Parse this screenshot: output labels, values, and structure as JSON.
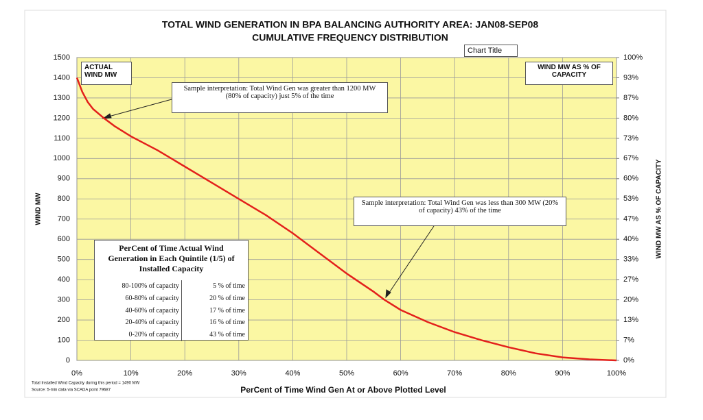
{
  "chart_data": {
    "type": "line",
    "title": "TOTAL WIND GENERATION IN BPA BALANCING AUTHORITY AREA: JAN08-SEP08",
    "subtitle": "CUMULATIVE FREQUENCY DISTRIBUTION",
    "tooltip": "Chart Title",
    "x_label": "PerCent of Time Wind Gen At or Above Plotted Level",
    "y_label": "WIND MW",
    "y2_label": "WIND MW AS % OF CAPACITY",
    "left_box": "ACTUAL WIND MW",
    "right_box": "WIND MW AS % OF CAPACITY",
    "color": "#e3201b",
    "grid": true,
    "x": [
      0,
      1,
      2,
      3,
      5,
      7,
      10,
      15,
      20,
      25,
      30,
      35,
      40,
      45,
      50,
      55,
      57,
      60,
      65,
      70,
      75,
      80,
      85,
      90,
      95,
      100
    ],
    "values": [
      1400,
      1330,
      1280,
      1245,
      1200,
      1160,
      1110,
      1040,
      960,
      880,
      800,
      720,
      630,
      530,
      430,
      340,
      300,
      250,
      190,
      140,
      100,
      65,
      35,
      15,
      5,
      0
    ],
    "xlim": [
      0,
      100
    ],
    "xticks": [
      {
        "value": 0,
        "label": "0%"
      },
      {
        "value": 10,
        "label": "10%"
      },
      {
        "value": 20,
        "label": "20%"
      },
      {
        "value": 30,
        "label": "30%"
      },
      {
        "value": 40,
        "label": "40%"
      },
      {
        "value": 50,
        "label": "50%"
      },
      {
        "value": 60,
        "label": "60%"
      },
      {
        "value": 70,
        "label": "70%"
      },
      {
        "value": 80,
        "label": "80%"
      },
      {
        "value": 90,
        "label": "90%"
      },
      {
        "value": 100,
        "label": "100%"
      }
    ],
    "ylim": [
      0,
      1500
    ],
    "yticks": [
      0,
      100,
      200,
      300,
      400,
      500,
      600,
      700,
      800,
      900,
      1000,
      1100,
      1200,
      1300,
      1400,
      1500
    ],
    "y2lim": [
      0,
      100
    ],
    "y2ticks": [
      {
        "value": 0,
        "label": "0%"
      },
      {
        "value": 6.67,
        "label": "7%"
      },
      {
        "value": 13.33,
        "label": "13%"
      },
      {
        "value": 20,
        "label": "20%"
      },
      {
        "value": 26.67,
        "label": "27%"
      },
      {
        "value": 33.33,
        "label": "33%"
      },
      {
        "value": 40,
        "label": "40%"
      },
      {
        "value": 46.67,
        "label": "47%"
      },
      {
        "value": 53.33,
        "label": "53%"
      },
      {
        "value": 60,
        "label": "60%"
      },
      {
        "value": 66.67,
        "label": "67%"
      },
      {
        "value": 73.33,
        "label": "73%"
      },
      {
        "value": 80,
        "label": "80%"
      },
      {
        "value": 86.67,
        "label": "87%"
      },
      {
        "value": 93.33,
        "label": "93%"
      },
      {
        "value": 100,
        "label": "100%"
      }
    ],
    "annotations": [
      {
        "text": "Sample interpretation:  Total Wind Gen was greater than 1200 MW (80% of capacity) just 5% of the time"
      },
      {
        "text": "Sample interpretation:  Total Wind Gen was less than 300 MW (20% of capacity) 43% of the time"
      }
    ],
    "table": {
      "title": "PerCent of Time Actual Wind Generation in Each Quintile (1/5) of Installed Capacity",
      "rows": [
        [
          "80-100% of capacity",
          "5 % of time"
        ],
        [
          "60-80% of capacity",
          "20 % of time"
        ],
        [
          "40-60% of capacity",
          "17 % of time"
        ],
        [
          "20-40% of capacity",
          "16 % of time"
        ],
        [
          "0-20% of capacity",
          "43 % of time"
        ]
      ]
    },
    "notes": [
      "Total Installed Wind Capacity during this period = 1490 MW",
      "Source: 5-min data via SCADA point 79687"
    ]
  }
}
